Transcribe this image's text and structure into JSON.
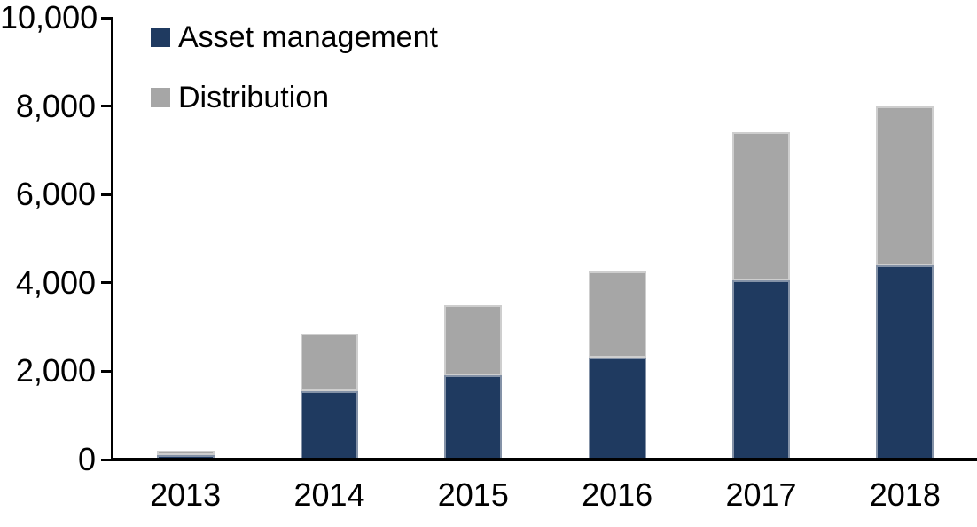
{
  "chart_data": {
    "type": "bar",
    "stacked": true,
    "title": "",
    "xlabel": "",
    "ylabel": "",
    "categories": [
      "2013",
      "2014",
      "2015",
      "2016",
      "2017",
      "2018"
    ],
    "series": [
      {
        "name": "Asset management",
        "color": "#1f3a60",
        "values": [
          100,
          1550,
          1900,
          2300,
          4050,
          4400
        ]
      },
      {
        "name": "Distribution",
        "color": "#a6a6a6",
        "values": [
          100,
          1300,
          1600,
          1950,
          3350,
          3600
        ]
      }
    ],
    "totals": [
      200,
      2850,
      3500,
      4250,
      7400,
      8000
    ],
    "ylim": [
      0,
      10000
    ],
    "yticks": [
      0,
      2000,
      4000,
      6000,
      8000,
      10000
    ],
    "ytick_labels": [
      "0",
      "2,000",
      "4,000",
      "6,000",
      "8,000",
      "10,000"
    ],
    "grid": false,
    "legend_position": "top-left-inside",
    "axis_color": "#000000",
    "background_color": "#ffffff"
  }
}
